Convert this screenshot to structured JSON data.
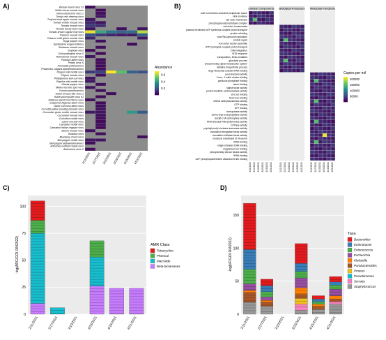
{
  "panels": {
    "A": "A)",
    "B": "B)",
    "C": "C)",
    "D": "D)"
  },
  "colors": {
    "grey": "#8c8c8c",
    "viridis_low": "#440154",
    "viridis_mid": "#21918c",
    "viridis_high": "#fde725",
    "tetracycline": "#e41a1c",
    "phenicol": "#4daf4a",
    "macrolide": "#17becf",
    "beta_lactamase": "#c77cff"
  },
  "chart_data": [
    {
      "panel": "A",
      "type": "heatmap",
      "x": [
        "2/11/2021",
        "2/17/2021",
        "3/10/2021",
        "3/23/2021",
        "4/15/2021",
        "4/21/2021"
      ],
      "y": [
        "Wuhan insect virus 23",
        "White clover mosaic virus",
        "Varroa destructor virus 1",
        "Turnip vein-clearing virus",
        "Tropical soda apple mosaic virus",
        "Tomato mottle mosaic virus",
        "Tomato mosaic virus",
        "Tomato bushy stunt virus",
        "Tomato brown rugose fruit virus",
        "Tobacco mosaic virus",
        "Tobacco mild green mosaic virus",
        "Tioga pepper virus",
        "Spodoptera exigua totivirus",
        "Sowbane mosaic virus",
        "Soybean virus",
        "Schlumbergera virus X",
        "Rehmannia mosaic virus",
        "Psilotum latent virus",
        "Potato virus S",
        "Poinsettia pollinosivirus",
        "Phaseolus vulgaris alphaendornavirus",
        "Pepper mild mottle virus",
        "Pepino mosaic virus",
        "Pelargonium leaf curl virus",
        "Paprika mild mottle virus",
        "Obuda pepper virus",
        "Melon necrotic spot virus",
        "Human picobirnavirus",
        "Hubei tombus-like virus 1",
        "Hubei picorna-like virus 61",
        "Hibiscus latent Fort Pierce virus",
        "Grapevine Algerian latent virus",
        "Garlic common latent virus",
        "Cucurbit yellow stunting disorder virus",
        "Cucumber green mottle mosaic virus",
        "Cucumber mosaic virus",
        "Cocksfoot mottle virus",
        "Carrot red leaf virus",
        "Carnation mottle virus",
        "Carnation Italian ringspot virus",
        "Brome mosaic virus",
        "Bostana virus",
        "Blueberry shock virus",
        "Bell pepper mottle virus",
        "Bell pepper alphaendornavirus",
        "Artichoke mottled crinkle virus",
        "Alstroemia virus X"
      ],
      "values": [
        [
          0.03,
          null,
          null,
          null,
          null,
          null
        ],
        [
          null,
          0.02,
          null,
          null,
          null,
          null
        ],
        [
          null,
          0.03,
          null,
          null,
          null,
          null
        ],
        [
          null,
          0.04,
          null,
          null,
          null,
          null
        ],
        [
          0.05,
          null,
          null,
          null,
          null,
          null
        ],
        [
          0.08,
          0.04,
          null,
          null,
          null,
          null
        ],
        [
          0.12,
          0.1,
          null,
          null,
          null,
          null
        ],
        [
          0.05,
          null,
          null,
          0.03,
          null,
          0.04
        ],
        [
          0.68,
          0.42,
          0.28,
          0.22,
          0.25,
          0.62
        ],
        [
          0.18,
          0.12,
          0.08,
          0.06,
          0.05,
          0.22
        ],
        [
          0.08,
          null,
          null,
          null,
          null,
          0.05
        ],
        [
          null,
          0.03,
          null,
          null,
          null,
          null
        ],
        [
          null,
          null,
          null,
          null,
          0.02,
          null
        ],
        [
          null,
          0.03,
          null,
          null,
          null,
          null
        ],
        [
          0.03,
          null,
          null,
          null,
          null,
          null
        ],
        [
          null,
          0.02,
          null,
          null,
          null,
          null
        ],
        [
          0.05,
          null,
          null,
          null,
          null,
          null
        ],
        [
          null,
          0.02,
          null,
          null,
          null,
          null
        ],
        [
          null,
          0.03,
          null,
          null,
          null,
          null
        ],
        [
          null,
          0.02,
          null,
          null,
          null,
          null
        ],
        [
          null,
          0.02,
          null,
          null,
          null,
          null
        ],
        [
          0.12,
          0.14,
          0.7,
          0.5,
          0.22,
          0.18
        ],
        [
          null,
          0.03,
          null,
          null,
          null,
          null
        ],
        [
          0.04,
          null,
          null,
          null,
          null,
          null
        ],
        [
          0.05,
          null,
          null,
          null,
          null,
          null
        ],
        [
          null,
          0.03,
          null,
          null,
          null,
          null
        ],
        [
          0.04,
          null,
          null,
          null,
          null,
          null
        ],
        [
          null,
          0.03,
          null,
          null,
          null,
          null
        ],
        [
          null,
          null,
          0.03,
          null,
          null,
          null
        ],
        [
          null,
          0.02,
          null,
          null,
          null,
          null
        ],
        [
          0.04,
          null,
          null,
          null,
          null,
          null
        ],
        [
          null,
          0.02,
          null,
          null,
          null,
          null
        ],
        [
          null,
          0.03,
          null,
          null,
          null,
          null
        ],
        [
          null,
          0.04,
          null,
          null,
          null,
          null
        ],
        [
          0.06,
          0.04,
          null,
          null,
          0.38,
          0.2
        ],
        [
          null,
          0.03,
          null,
          null,
          null,
          null
        ],
        [
          null,
          0.02,
          null,
          null,
          null,
          null
        ],
        [
          null,
          0.02,
          null,
          null,
          null,
          null
        ],
        [
          null,
          0.03,
          null,
          null,
          null,
          null
        ],
        [
          null,
          0.02,
          null,
          null,
          null,
          null
        ],
        [
          0.04,
          null,
          null,
          null,
          null,
          null
        ],
        [
          null,
          0.03,
          null,
          null,
          null,
          null
        ],
        [
          null,
          null,
          null,
          null,
          null,
          0.03
        ],
        [
          0.05,
          0.04,
          null,
          null,
          null,
          null
        ],
        [
          0.03,
          null,
          null,
          null,
          null,
          null
        ],
        [
          null,
          null,
          null,
          null,
          null,
          null
        ],
        [
          0.03,
          null,
          null,
          null,
          null,
          null
        ]
      ],
      "legend": {
        "title": "Abundance",
        "ticks": [
          "0.6",
          "0.4",
          "0.2"
        ],
        "range": [
          0,
          0.7
        ]
      }
    },
    {
      "panel": "B",
      "type": "heatmap",
      "x": [
        "2/11/2021",
        "2/17/2021",
        "3/10/2021",
        "3/23/2021",
        "4/15/2021",
        "4/21/2021"
      ],
      "facets": [
        "Cellular Components",
        "Biological Processes",
        "Molecular Functions"
      ],
      "y": [
        "outer membrane-bounded periplasmic space",
        "viral envelope",
        "cell outer membrane",
        "phosphopyruvate hydratase complex",
        "cell redox homeostasis",
        "plasma membrane ATP synthesis coupled proton transport",
        "protein refolding",
        "viral RNA genome replication",
        "protein repair",
        "iron-sulfur cluster assembly",
        "ATP hydrolysis coupled proton transport",
        "DNA integration",
        "SOS response",
        "transposition, DNA-mediated",
        "glycolytic process",
        "phosphorelay signal transduction system",
        "histidine biosynthetic process",
        "large ribosomal subunit rRNA binding",
        "peroxiredoxin activity",
        "4 iron, 4 sulfur cluster binding",
        "pyridoxal phosphate binding",
        "heme binding",
        "sigma factor activity",
        "protein disulfide oxidoreductase activity",
        "zinc ion binding",
        "ferric iron binding",
        "mRNA methyltransferase activity",
        "GTP binding",
        "ATP binding",
        "transposase activity",
        "serine-type endopeptidase activity",
        "acetyl-CoA carboxylase activity",
        "RNA-directed RNA polymerase activity",
        "GTPase activity",
        "peptidyl-prolyl cis-trans isomerase activity",
        "translation elongation factor activity",
        "translation initiation factor activity",
        "structural constituent of ribosome",
        "rRNA binding",
        "single-stranded DNA binding",
        "magnesium ion binding",
        "phosphorelay sensor kinase activity",
        "tRNA binding",
        "ACP phosphopantetheine attachment site binding"
      ],
      "facet_rows": [
        [
          0,
          4
        ],
        [
          4,
          18
        ],
        [
          18,
          44
        ]
      ],
      "legend": {
        "title": "Copies per mil",
        "ticks": [
          "200000",
          "150000",
          "100000",
          "50000"
        ],
        "range": [
          0,
          220000
        ]
      }
    },
    {
      "panel": "C",
      "type": "bar",
      "stacked": true,
      "categories": [
        "2/11/2021",
        "2/17/2021",
        "3/10/2021",
        "3/23/2021",
        "4/15/2021",
        "4/21/2021"
      ],
      "series": [
        {
          "name": "Tetracycline",
          "values": [
            18,
            0,
            0,
            0,
            0,
            0
          ]
        },
        {
          "name": "Phenicol",
          "values": [
            12,
            0,
            0,
            15,
            0,
            0
          ]
        },
        {
          "name": "Macrolide",
          "values": [
            65,
            6,
            0,
            27,
            0,
            0
          ]
        },
        {
          "name": "Beta-lactamases",
          "values": [
            10,
            0,
            0,
            26,
            24,
            24
          ]
        }
      ],
      "ylabel": "-log(ARG/GOI 0042022)",
      "yticks": [
        0,
        25,
        50,
        75,
        100
      ],
      "ylim": [
        0,
        110
      ],
      "legend": {
        "title": "AMR Class",
        "items": [
          "Tetracycline",
          "Phenicol",
          "Macrolide",
          "Beta-lactamases"
        ]
      }
    },
    {
      "panel": "D",
      "type": "bar",
      "stacked": true,
      "categories": [
        "2/11/2021",
        "2/17/2021",
        "3/10/2021",
        "3/23/2021",
        "4/15/2021",
        "4/21/2021"
      ],
      "series": [
        {
          "name": "Bacteroides",
          "values": [
            70,
            10,
            0,
            30,
            5,
            8
          ]
        },
        {
          "name": "Enterobacter",
          "values": [
            30,
            9,
            0,
            12,
            4,
            5
          ]
        },
        {
          "name": "Enterococcus",
          "values": [
            22,
            8,
            0,
            10,
            4,
            6
          ]
        },
        {
          "name": "Escherichia",
          "values": [
            10,
            5,
            0,
            15,
            0,
            10
          ]
        },
        {
          "name": "Klebsiella",
          "values": [
            3,
            3,
            0,
            10,
            3,
            5
          ]
        },
        {
          "name": "Parabacteroides",
          "values": [
            15,
            6,
            0,
            6,
            5,
            4
          ]
        },
        {
          "name": "Proteus",
          "values": [
            0,
            0,
            0,
            9,
            0,
            0
          ]
        },
        {
          "name": "Pseudomonas",
          "values": [
            0,
            0,
            0,
            0,
            0,
            0
          ]
        },
        {
          "name": "Serratia",
          "values": [
            0,
            0,
            0,
            9,
            0,
            4
          ]
        },
        {
          "name": "Staphylococcus",
          "values": [
            18,
            12,
            0,
            6,
            7,
            15
          ]
        }
      ],
      "ylabel": "-log(VF/GOI 0042022)",
      "yticks": [
        0,
        50,
        100,
        150
      ],
      "ylim": [
        0,
        180
      ],
      "legend": {
        "title": "Taxa",
        "items": [
          "Bacteroides",
          "Enterobacter",
          "Enterococcus",
          "Escherichia",
          "Klebsiella",
          "Parabacteroides",
          "Proteus",
          "Pseudomonas",
          "Serratia",
          "Staphylococcus"
        ]
      }
    }
  ]
}
